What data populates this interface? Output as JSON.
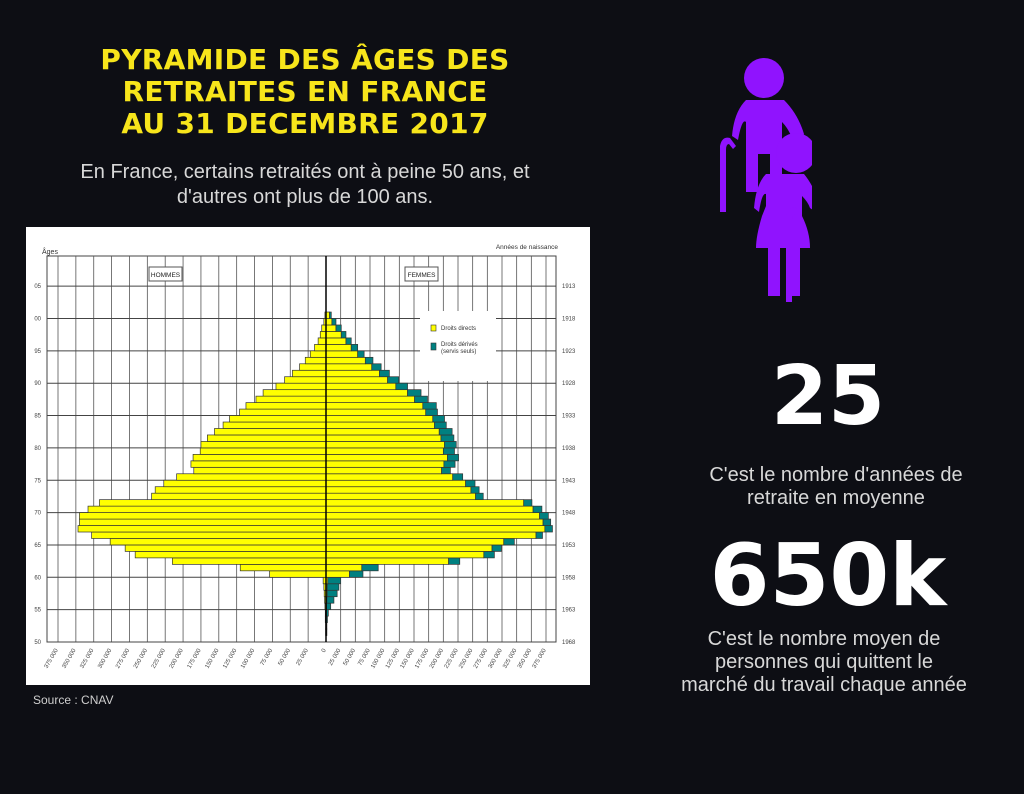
{
  "header": {
    "title_lines": [
      "PYRAMIDE DES ÂGES DES",
      "RETRAITES EN FRANCE",
      "AU 31 DECEMBRE 2017"
    ],
    "subtitle_lines": [
      "En France, certains retraités ont à peine 50 ans, et",
      "d'autres ont plus de 100 ans."
    ]
  },
  "source": "Source : CNAV",
  "stats": [
    {
      "value": "25",
      "text_lines": [
        "C'est le nombre d'années de",
        "retraite en moyenne"
      ]
    },
    {
      "value": "650k",
      "text_lines": [
        "C'est le nombre moyen de",
        "personnes qui quittent le",
        "marché du travail chaque année"
      ]
    }
  ],
  "colors": {
    "background": "#0d0e14",
    "title": "#f7e51b",
    "icon": "#9013fe",
    "direct": "#ffff00",
    "derived": "#008080"
  },
  "icon": "elderly-couple-icon",
  "chart_data": {
    "type": "bar",
    "subtype": "population-pyramid",
    "ylabel": "Âges",
    "y2label": "Années de naissance",
    "men_label": "HOMMES",
    "women_label": "FEMMES",
    "legend": [
      {
        "name": "Droits directs",
        "color": "#ffff00"
      },
      {
        "name": "Droits dérivés",
        "sub": "(servis seuls)",
        "color": "#008080"
      }
    ],
    "legend_position": "top-right",
    "age_ticks": [
      "05",
      "00",
      "95",
      "90",
      "85",
      "80",
      "75",
      "70",
      "65",
      "60",
      "55",
      "50"
    ],
    "age_tick_values": [
      105,
      100,
      95,
      90,
      85,
      80,
      75,
      70,
      65,
      60,
      55,
      50
    ],
    "year_ticks": [
      "1913",
      "1918",
      "1923",
      "1928",
      "1933",
      "1938",
      "1943",
      "1948",
      "1953",
      "1958",
      "1963",
      "1968"
    ],
    "x_ticks_left": [
      "375 000",
      "350 000",
      "325 000",
      "300 000",
      "275 000",
      "250 000",
      "225 000",
      "200 000",
      "175 000",
      "150 000",
      "125 000",
      "100 000",
      "75 000",
      "50 000",
      "25 000"
    ],
    "x_ticks_right": [
      "0",
      "25 000",
      "50 000",
      "75 000",
      "100 000",
      "125 000",
      "150 000",
      "175 000",
      "200 000",
      "225 000",
      "250 000",
      "275 000",
      "300 000",
      "325 000",
      "350 000",
      "375 000"
    ],
    "xlim": [
      -375000,
      375000
    ],
    "ylim": [
      50,
      109
    ],
    "units": "thousands",
    "ages": [
      51,
      52,
      53,
      54,
      55,
      56,
      57,
      58,
      59,
      60,
      61,
      62,
      63,
      64,
      65,
      66,
      67,
      68,
      69,
      70,
      71,
      72,
      73,
      74,
      75,
      76,
      77,
      78,
      79,
      80,
      81,
      82,
      83,
      84,
      85,
      86,
      87,
      88,
      89,
      90,
      91,
      92,
      93,
      94,
      95,
      96,
      97,
      98,
      99,
      100
    ],
    "men": [
      0.5,
      0.5,
      1,
      1,
      1.5,
      2,
      2.5,
      3,
      4,
      79,
      120,
      215,
      267,
      281,
      302,
      328,
      347,
      345,
      345,
      333,
      317,
      244,
      239,
      227,
      209,
      185,
      189,
      186,
      176,
      175,
      166,
      156,
      144,
      135,
      121,
      112,
      98,
      88,
      70,
      58,
      47,
      37,
      29,
      22,
      16,
      11,
      8,
      6,
      3,
      1.5
    ],
    "women_direct": [
      0.5,
      0.5,
      0.5,
      1,
      1,
      1.5,
      2,
      2,
      3,
      40,
      61,
      209,
      269,
      283,
      303,
      358,
      373,
      370,
      364,
      353,
      337,
      255,
      247,
      238,
      216,
      197,
      201,
      207,
      200,
      202,
      196,
      193,
      185,
      182,
      170,
      165,
      151,
      139,
      119,
      105,
      91,
      78,
      67,
      54,
      43,
      34,
      26,
      17,
      10,
      6
    ],
    "women_derived": [
      1,
      1,
      2,
      3,
      7,
      12,
      17,
      20,
      22,
      23,
      28,
      19,
      18,
      16,
      18,
      11,
      13,
      13,
      15,
      15,
      14,
      13,
      14,
      16,
      17,
      15,
      19,
      19,
      19,
      20,
      22,
      22,
      20,
      20,
      20,
      23,
      22,
      23,
      20,
      19,
      17,
      16,
      13,
      11,
      11,
      9,
      8,
      9,
      7,
      3
    ]
  }
}
